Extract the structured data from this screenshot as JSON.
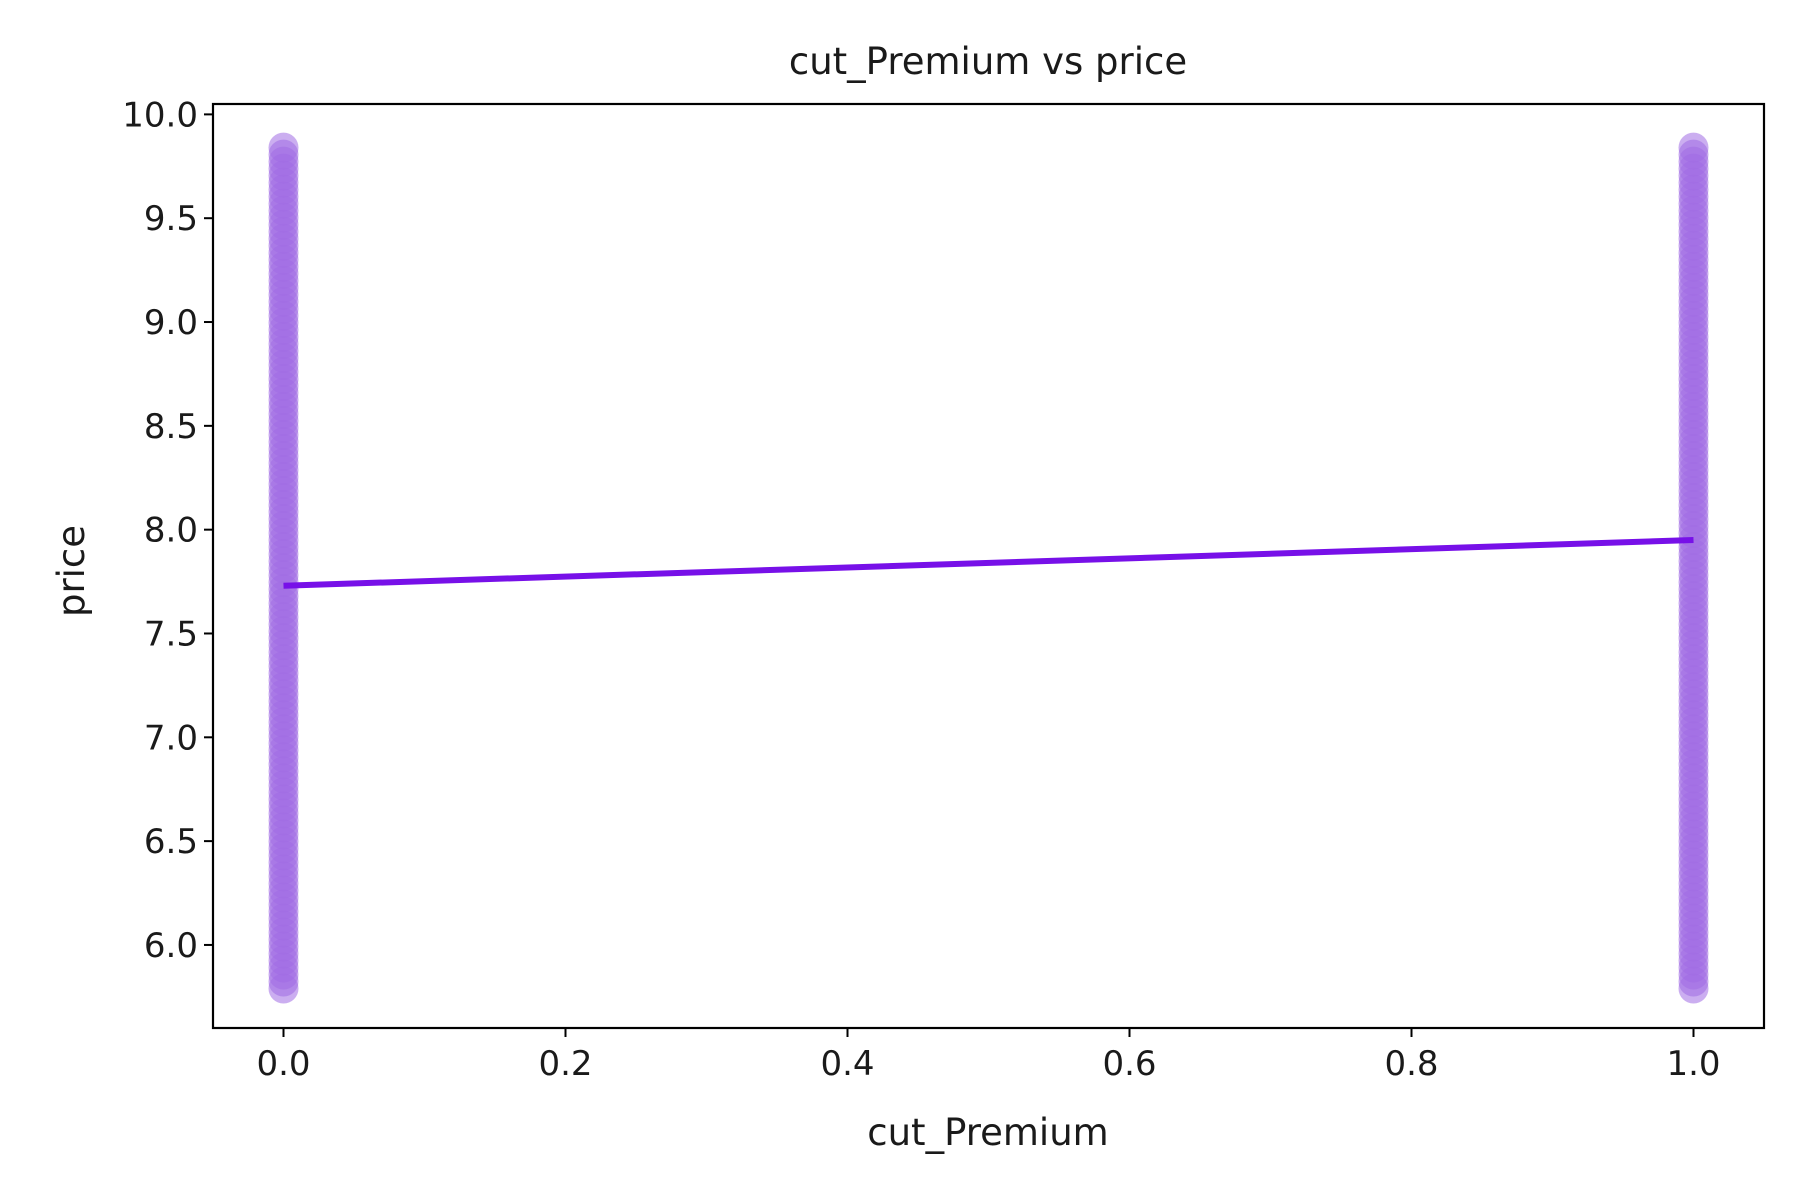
{
  "chart_data": {
    "type": "scatter",
    "title": "cut_Premium vs price",
    "xlabel": "cut_Premium",
    "ylabel": "price",
    "xlim": [
      -0.05,
      1.05
    ],
    "ylim": [
      5.6,
      10.05
    ],
    "x_ticks": [
      "0.0",
      "0.2",
      "0.4",
      "0.6",
      "0.8",
      "1.0"
    ],
    "x_tick_values": [
      0.0,
      0.2,
      0.4,
      0.6,
      0.8,
      1.0
    ],
    "y_ticks": [
      "6.0",
      "6.5",
      "7.0",
      "7.5",
      "8.0",
      "8.5",
      "9.0",
      "9.5",
      "10.0"
    ],
    "y_tick_values": [
      6.0,
      6.5,
      7.0,
      7.5,
      8.0,
      8.5,
      9.0,
      9.5,
      10.0
    ],
    "grid": false,
    "series": [
      {
        "kind": "scatter",
        "color": "#a06ce4",
        "points": [
          {
            "x": 0,
            "y_min": 5.79,
            "y_max": 9.84
          },
          {
            "x": 1,
            "y_min": 5.79,
            "y_max": 9.84
          }
        ]
      },
      {
        "kind": "regression-line",
        "color": "#7710e8",
        "x": [
          0,
          1
        ],
        "y": [
          7.73,
          7.95
        ]
      }
    ]
  }
}
